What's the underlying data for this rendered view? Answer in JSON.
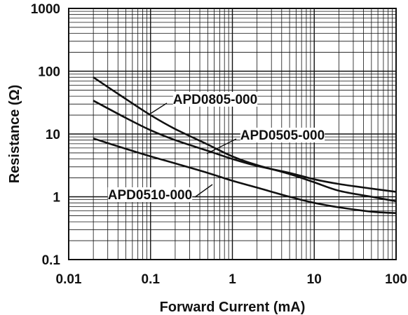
{
  "chart_data": {
    "type": "line",
    "xlabel": "Forward Current (mA)",
    "ylabel": "Resistance (Ω)",
    "x_scale": "log",
    "y_scale": "log",
    "xlim": [
      0.01,
      100
    ],
    "ylim": [
      0.1,
      1000
    ],
    "grid": true,
    "x_ticks": [
      "0.01",
      "0.1",
      "1",
      "10",
      "100"
    ],
    "y_ticks": [
      "0.1",
      "1",
      "10",
      "100",
      "1000"
    ],
    "series": [
      {
        "name": "APD0805-000",
        "x": [
          0.02,
          0.05,
          0.1,
          0.2,
          0.5,
          1,
          2,
          5,
          10,
          20,
          50,
          100
        ],
        "y": [
          80,
          36,
          20,
          12,
          6.8,
          4.4,
          3.2,
          2.3,
          1.7,
          1.25,
          1.0,
          0.85
        ]
      },
      {
        "name": "APD0505-000",
        "x": [
          0.02,
          0.05,
          0.1,
          0.2,
          0.5,
          1,
          2,
          5,
          10,
          20,
          50,
          100
        ],
        "y": [
          34,
          18,
          11.5,
          8.0,
          5.4,
          4.0,
          3.1,
          2.4,
          1.9,
          1.6,
          1.35,
          1.2
        ]
      },
      {
        "name": "APD0510-000",
        "x": [
          0.02,
          0.05,
          0.1,
          0.2,
          0.5,
          1,
          2,
          5,
          10,
          20,
          50,
          100
        ],
        "y": [
          8.5,
          5.8,
          4.4,
          3.4,
          2.4,
          1.8,
          1.4,
          1.0,
          0.8,
          0.68,
          0.58,
          0.55
        ]
      }
    ]
  }
}
